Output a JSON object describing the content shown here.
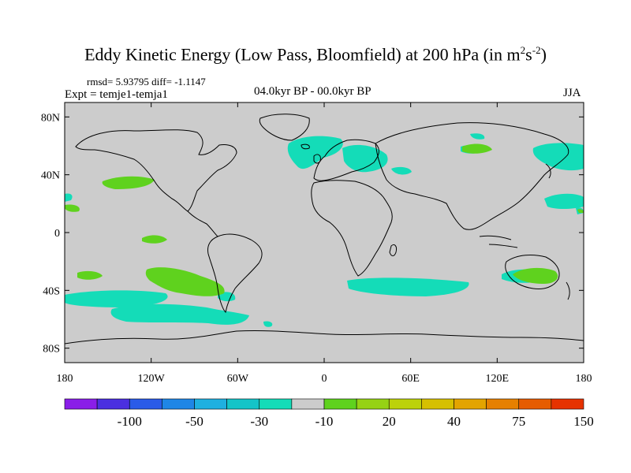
{
  "title": {
    "prefix": "Eddy Kinetic Energy (Low Pass, Bloomfield) at 200 hPa (in m",
    "sup1": "2",
    "mid": "s",
    "sup2": "-2",
    "suffix": ")"
  },
  "stats": {
    "rmsd_diff": "rmsd= 5.93795 diff= -1.1147",
    "expt": "Expt = temje1-temja1",
    "period": "04.0kyr BP - 00.0kyr BP",
    "season": "JJA"
  },
  "axes": {
    "lat_ticks": [
      "80N",
      "40N",
      "0",
      "40S",
      "80S"
    ],
    "lat_values": [
      80,
      40,
      0,
      -40,
      -80
    ],
    "lon_ticks": [
      "180",
      "120W",
      "60W",
      "0",
      "60E",
      "120E",
      "180"
    ],
    "lon_values": [
      -180,
      -120,
      -60,
      0,
      60,
      120,
      180
    ]
  },
  "colorbar": {
    "colors": [
      "#8a1ee8",
      "#4b2fe0",
      "#2a5be8",
      "#1f86e6",
      "#1fb0e0",
      "#14c4c8",
      "#14dcb8",
      "#cccccc",
      "#5fd21e",
      "#96d214",
      "#bcd20a",
      "#d6c000",
      "#e3a400",
      "#e68000",
      "#e65c00",
      "#e63200"
    ],
    "labels": [
      "-100",
      "-50",
      "-30",
      "-10",
      "20",
      "40",
      "75",
      "150"
    ]
  },
  "colors": {
    "background": "#cccccc",
    "cyan_fill": "#14dcb8",
    "green_fill": "#5fd21e"
  }
}
